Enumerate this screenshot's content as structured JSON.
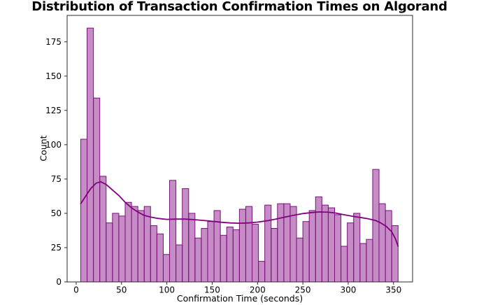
{
  "chart_data": {
    "type": "bar",
    "variant": "histogram_with_kde",
    "title": "Distribution of Transaction Confirmation Times on Algorand",
    "xlabel": "Confirmation Time (seconds)",
    "ylabel": "Count",
    "bins": {
      "start": 5,
      "width": 7,
      "count": 50
    },
    "counts": [
      104,
      185,
      134,
      77,
      43,
      50,
      48,
      58,
      55,
      52,
      55,
      41,
      35,
      20,
      74,
      27,
      68,
      50,
      32,
      39,
      44,
      52,
      34,
      40,
      38,
      53,
      55,
      42,
      15,
      56,
      39,
      57,
      57,
      55,
      32,
      44,
      52,
      62,
      56,
      54,
      49,
      26,
      43,
      50,
      28,
      31,
      82,
      57,
      52,
      41
    ],
    "kde_points": [
      [
        5,
        57
      ],
      [
        10,
        62
      ],
      [
        16,
        68
      ],
      [
        22,
        72
      ],
      [
        27,
        73
      ],
      [
        33,
        71
      ],
      [
        40,
        67
      ],
      [
        47,
        63
      ],
      [
        54,
        58
      ],
      [
        61,
        54
      ],
      [
        68,
        51
      ],
      [
        75,
        48.5
      ],
      [
        82,
        47.3
      ],
      [
        90,
        46.3
      ],
      [
        100,
        45.6
      ],
      [
        110,
        45.8
      ],
      [
        120,
        45.8
      ],
      [
        130,
        45.4
      ],
      [
        140,
        44.8
      ],
      [
        150,
        44.2
      ],
      [
        160,
        43.5
      ],
      [
        170,
        43
      ],
      [
        180,
        42.8
      ],
      [
        190,
        43
      ],
      [
        200,
        43.6
      ],
      [
        210,
        44.5
      ],
      [
        220,
        45.8
      ],
      [
        230,
        47.2
      ],
      [
        240,
        48.6
      ],
      [
        250,
        49.8
      ],
      [
        260,
        50.6
      ],
      [
        268,
        51
      ],
      [
        278,
        50.8
      ],
      [
        286,
        50.2
      ],
      [
        295,
        49
      ],
      [
        305,
        47.8
      ],
      [
        315,
        46.8
      ],
      [
        322,
        46
      ],
      [
        330,
        44.8
      ],
      [
        336,
        43
      ],
      [
        342,
        40.5
      ],
      [
        348,
        36.5
      ],
      [
        352,
        31.5
      ],
      [
        355,
        26
      ]
    ],
    "xticks": [
      0,
      50,
      100,
      150,
      200,
      250,
      300,
      350
    ],
    "yticks": [
      0,
      25,
      50,
      75,
      100,
      125,
      150,
      175
    ],
    "xlim": [
      -10,
      371
    ],
    "ylim": [
      0,
      194.25
    ],
    "grid": false,
    "legend": "none",
    "colors": {
      "bar_fill": "rgba(128,0,128,0.45)",
      "bar_edge": "#7a127a",
      "kde_line": "#800080",
      "spine": "#2b2b2b",
      "tick_text": "#000000",
      "background": "#ffffff"
    }
  }
}
